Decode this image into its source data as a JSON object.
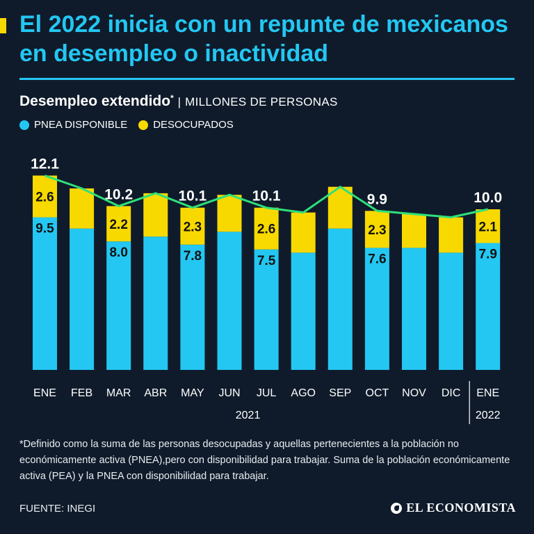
{
  "header": {
    "title": "El 2022 inicia con un repunte de mexicanos en desempleo o inactividad"
  },
  "chart_header": {
    "title": "Desempleo extendido",
    "title_mark": "*",
    "separator": "|",
    "unit": "MILLONES DE PERSONAS"
  },
  "legend": {
    "pnea_label": "PNEA DISPONIBLE",
    "desocupados_label": "DESOCUPADOS"
  },
  "colors": {
    "background": "#0f1b2b",
    "pnea": "#23c7f2",
    "desocupados": "#f7d900",
    "line": "#2fe07a",
    "accent": "#23c7f2"
  },
  "chart_data": {
    "type": "bar",
    "stacked": true,
    "title": "Desempleo extendido",
    "ylabel": "MILLONES DE PERSONAS",
    "ylim": [
      0,
      12.5
    ],
    "categories": [
      "ENE",
      "FEB",
      "MAR",
      "ABR",
      "MAY",
      "JUN",
      "JUL",
      "AGO",
      "SEP",
      "OCT",
      "NOV",
      "DIC",
      "ENE"
    ],
    "year_labels": [
      {
        "label": "2021",
        "from": 0,
        "to": 11
      },
      {
        "label": "2022",
        "from": 12,
        "to": 12
      }
    ],
    "series": [
      {
        "name": "PNEA DISPONIBLE",
        "values": [
          9.5,
          8.8,
          8.0,
          8.3,
          7.8,
          8.6,
          7.5,
          7.3,
          8.8,
          7.6,
          7.6,
          7.3,
          7.9
        ]
      },
      {
        "name": "DESOCUPADOS",
        "values": [
          2.6,
          2.5,
          2.2,
          2.7,
          2.3,
          2.3,
          2.6,
          2.5,
          2.6,
          2.3,
          2.1,
          2.2,
          2.1
        ]
      }
    ],
    "totals": [
      12.1,
      11.3,
      10.2,
      11.0,
      10.1,
      10.9,
      10.1,
      9.8,
      11.4,
      9.9,
      9.7,
      9.5,
      10.0
    ],
    "label_pnea": [
      "9.5",
      "",
      "8.0",
      "",
      "7.8",
      "",
      "7.5",
      "",
      "",
      "7.6",
      "",
      "",
      "7.9"
    ],
    "label_desocupados": [
      "2.6",
      "",
      "2.2",
      "",
      "2.3",
      "",
      "2.6",
      "",
      "",
      "2.3",
      "",
      "",
      "2.1"
    ],
    "label_totals": [
      "12.1",
      "",
      "10.2",
      "",
      "10.1",
      "",
      "10.1",
      "",
      "",
      "9.9",
      "",
      "",
      "10.0"
    ],
    "line_series": {
      "name": "Total",
      "values": [
        12.1,
        11.3,
        10.2,
        11.0,
        10.1,
        10.9,
        10.1,
        9.8,
        11.4,
        9.9,
        9.7,
        9.5,
        10.0
      ]
    }
  },
  "footer": {
    "footnote": "*Definido como la suma de las personas desocupadas y aquellas pertenecientes a la población no económicamente activa (PNEA),pero con disponibilidad para trabajar. Suma de la población económicamente activa (PEA) y la PNEA con disponibilidad para trabajar.",
    "source": "FUENTE: INEGI",
    "brand": "EL ECONOMISTA"
  }
}
